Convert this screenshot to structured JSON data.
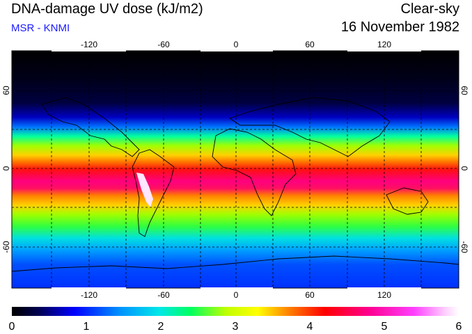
{
  "header": {
    "title": "DNA-damage UV dose (kJ/m2)",
    "subtitle": "MSR - KNMI",
    "mode": "Clear-sky",
    "date": "16 November 1982"
  },
  "map": {
    "lon_ticks": [
      "-120",
      "-60",
      "0",
      "60",
      "120"
    ],
    "lat_ticks_left": [
      "60",
      "0",
      "-60"
    ],
    "lat_ticks_right": [
      "60",
      "0",
      "-60"
    ]
  },
  "colorbar": {
    "labels": [
      "0",
      "1",
      "2",
      "3",
      "4",
      "5",
      "6"
    ],
    "colors": [
      "#000000",
      "#000050",
      "#0000ff",
      "#0090ff",
      "#00e8e8",
      "#00ff60",
      "#c0ff00",
      "#ffff00",
      "#ff8000",
      "#ff0000",
      "#ff0090",
      "#ff40ff",
      "#ffd0ff",
      "#ffffff"
    ]
  }
}
